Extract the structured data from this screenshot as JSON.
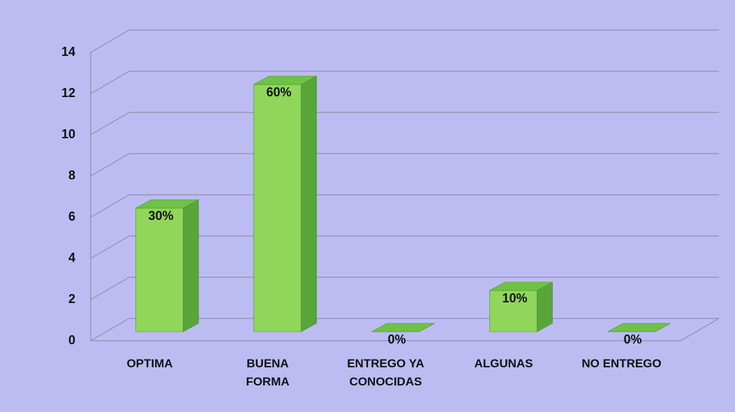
{
  "chart_data": {
    "type": "bar3d",
    "categories": [
      "OPTIMA",
      "BUENA\nFORMA",
      "ENTREGO YA\nCONOCIDAS",
      "ALGUNAS",
      "NO ENTREGO"
    ],
    "values": [
      6,
      12,
      0,
      2,
      0
    ],
    "annotations": [
      "30%",
      "60%",
      "0%",
      "10%",
      "0%"
    ],
    "color": "#8fd65a",
    "ylim": [
      0,
      14
    ],
    "yticks": [
      0,
      2,
      4,
      6,
      8,
      10,
      12,
      14
    ],
    "grid": true
  }
}
